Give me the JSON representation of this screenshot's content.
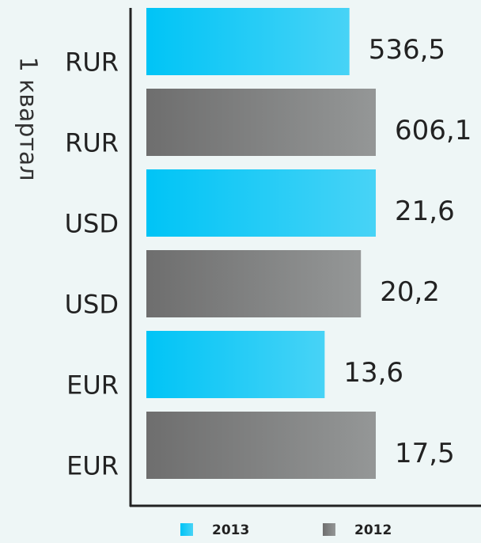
{
  "chart_data": {
    "type": "bar",
    "orientation": "horizontal",
    "ylabel": "1 квартал",
    "categories": [
      "RUR",
      "USD",
      "EUR"
    ],
    "series": [
      {
        "name": "2013",
        "color": "#00c4f6",
        "values": [
          536.5,
          21.6,
          13.6
        ],
        "value_labels": [
          "536,5",
          "21,6",
          "13,6"
        ]
      },
      {
        "name": "2012",
        "color": "#6e6e6e",
        "values": [
          606.1,
          20.2,
          17.5
        ],
        "value_labels": [
          "606,1",
          "20,2",
          "17,5"
        ]
      }
    ]
  }
}
